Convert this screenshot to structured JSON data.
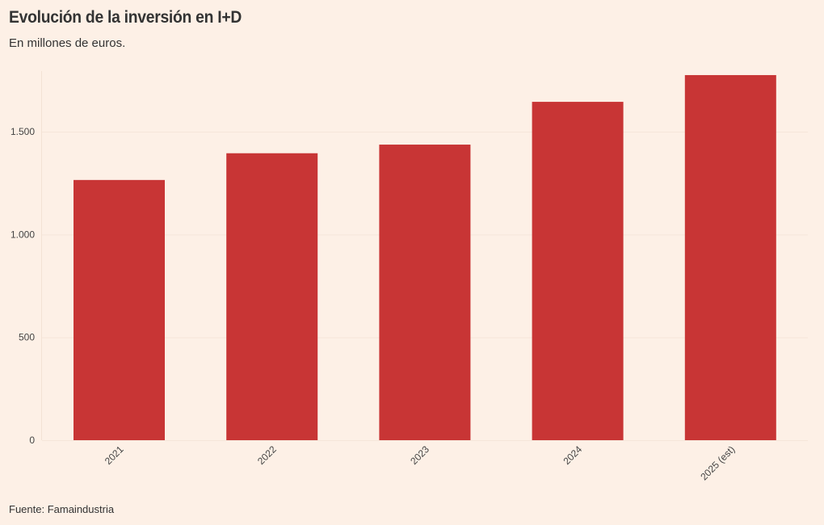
{
  "header": {
    "title": "Evolución de la inversión en I+D",
    "subtitle": "En millones de euros."
  },
  "footer": {
    "source": "Fuente: Famaindustria"
  },
  "colors": {
    "background": "#fdf0e6",
    "bar": "#c83535",
    "grid": "#f5e6da",
    "text": "#333333"
  },
  "chart_data": {
    "type": "bar",
    "title": "Evolución de la inversión en I+D",
    "subtitle": "En millones de euros.",
    "xlabel": "",
    "ylabel": "",
    "categories": [
      "2021",
      "2022",
      "2023",
      "2024",
      "2025 (est)"
    ],
    "values": [
      1265,
      1395,
      1437,
      1645,
      1775
    ],
    "ylim": [
      0,
      1800
    ],
    "yticks": [
      0,
      500,
      1000,
      1500
    ],
    "ytick_labels": [
      "0",
      "500",
      "1.000",
      "1.500"
    ],
    "grid": true,
    "legend": null,
    "source": "Fuente: Famaindustria"
  }
}
